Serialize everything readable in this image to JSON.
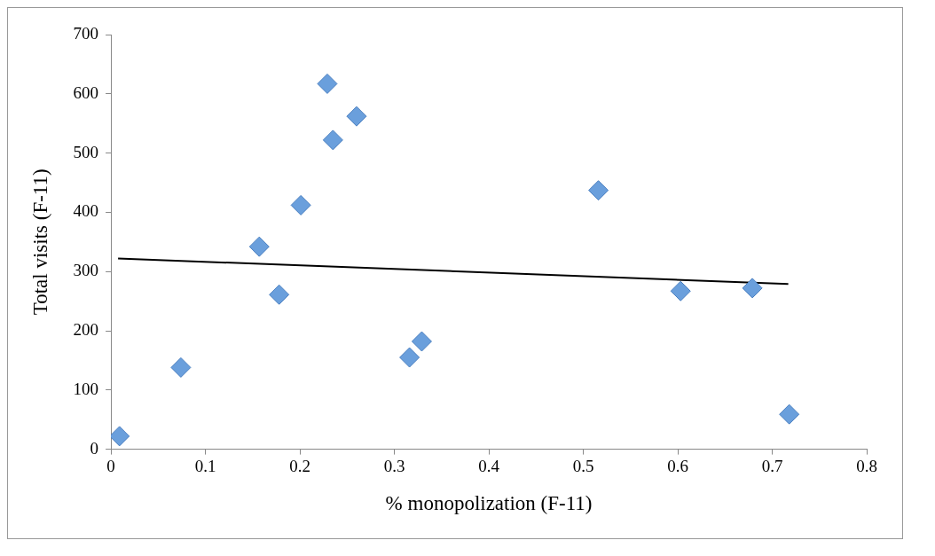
{
  "chart_data": {
    "type": "scatter",
    "xlabel": "% monopolization (F-11)",
    "ylabel": "Total visits (F-11)",
    "xlim": [
      0,
      0.8
    ],
    "ylim": [
      0,
      700
    ],
    "xticks": [
      0,
      0.1,
      0.2,
      0.3,
      0.4,
      0.5,
      0.6,
      0.7,
      0.8
    ],
    "yticks": [
      0,
      100,
      200,
      300,
      400,
      500,
      600,
      700
    ],
    "grid": false,
    "legend": false,
    "marker": "diamond",
    "series": [
      {
        "color": "#6a9fdc",
        "x": [
          0.009,
          0.074,
          0.157,
          0.178,
          0.201,
          0.229,
          0.235,
          0.26,
          0.316,
          0.329,
          0.516,
          0.603,
          0.679,
          0.718
        ],
        "values": [
          22,
          138,
          342,
          261,
          412,
          617,
          522,
          562,
          155,
          182,
          437,
          267,
          272,
          59
        ]
      },
      {
        "type": "line",
        "color": "#000000",
        "marker": "none",
        "line_style": "solid",
        "x": [
          0.0075,
          0.717
        ],
        "values": [
          322,
          279
        ]
      }
    ]
  }
}
